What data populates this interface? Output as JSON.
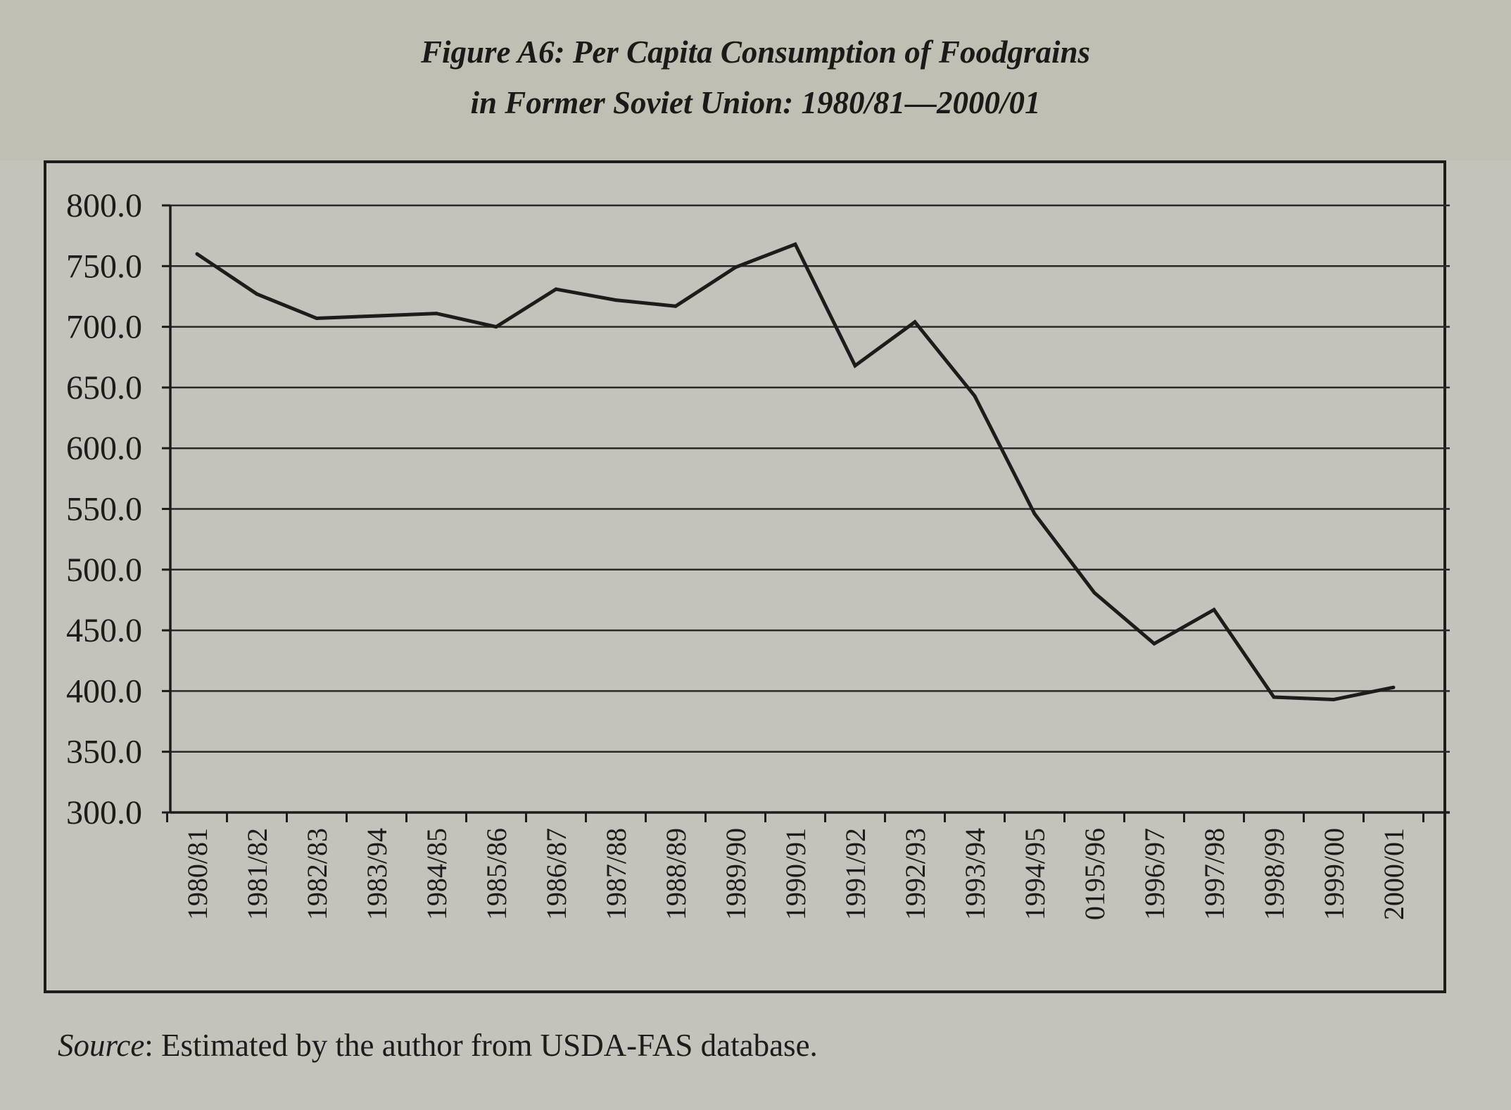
{
  "title_line1": "Figure A6: Per Capita Consumption of Foodgrains",
  "title_line2": "in Former Soviet Union: 1980/81—2000/01",
  "source": {
    "label": "Source",
    "text": ": Estimated by the author from USDA-FAS database."
  },
  "colors": {
    "line": "#1e1c1a",
    "grid": "#2a2826",
    "background": "#c3c3bb"
  },
  "chart_data": {
    "type": "line",
    "title": "Figure A6: Per Capita Consumption of Foodgrains in Former Soviet Union: 1980/81—2000/01",
    "xlabel": "",
    "ylabel": "",
    "ylim": [
      300,
      800
    ],
    "grid": true,
    "legend": "none",
    "y_ticks": [
      "800.0",
      "750.0",
      "700.0",
      "650.0",
      "600.0",
      "550.0",
      "500.0",
      "450.0",
      "400.0",
      "350.0",
      "300.0"
    ],
    "categories": [
      "1980/81",
      "1981/82",
      "1982/83",
      "1983/94",
      "1984/85",
      "1985/86",
      "1986/87",
      "1987/88",
      "1988/89",
      "1989/90",
      "1990/91",
      "1991/92",
      "1992/93",
      "1993/94",
      "1994/95",
      "0195/96",
      "1996/97",
      "1997/98",
      "1998/99",
      "1999/00",
      "2000/01"
    ],
    "series": [
      {
        "values": [
          760,
          727,
          707,
          709,
          711,
          700,
          731,
          722,
          717,
          749,
          768,
          668,
          704,
          643,
          546,
          481,
          439,
          467,
          395,
          393,
          403
        ]
      }
    ]
  }
}
